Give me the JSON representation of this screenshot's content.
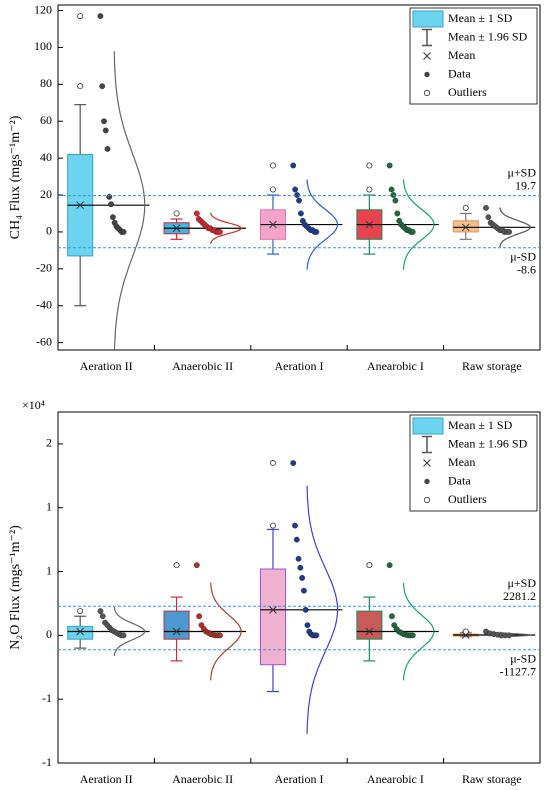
{
  "chart_data": [
    {
      "type": "box",
      "ylabel": "CH₄ Flux (mgs⁻¹m⁻²)",
      "categories": [
        "Aeration  II",
        "Anaerobic II",
        "Aeration I",
        "Anearobic I",
        "Raw storage"
      ],
      "ylim": [
        -64,
        123
      ],
      "yticks": [
        -60,
        -40,
        -20,
        0,
        20,
        40,
        60,
        80,
        100,
        120
      ],
      "legend": [
        "Mean ± 1 SD",
        "Mean ± 1.96 SD",
        "Mean",
        "Data",
        "Outliers"
      ],
      "legend_corner": "upper right",
      "ref_lines": [
        {
          "label": "μ+SD",
          "value": 19.7
        },
        {
          "label": "μ-SD",
          "value": -8.6
        }
      ],
      "ref_color": "#3a8fd8",
      "boxes": [
        {
          "box_low": -13,
          "box_high": 42,
          "mean": 14.5,
          "whisker_low": -40,
          "whisker_high": 69,
          "outliers": [
            79,
            117
          ],
          "points": [
            117,
            79,
            60,
            55,
            45,
            19,
            15,
            8,
            5,
            3,
            2,
            1,
            0,
            0
          ],
          "color": "#6cd4ef",
          "edge": "#3aa0c0",
          "whisker_color": "#555555",
          "point_color": "#444444",
          "curve_color": "#666666"
        },
        {
          "box_low": -1,
          "box_high": 5,
          "mean": 2,
          "whisker_low": -4,
          "whisker_high": 7,
          "outliers": [
            10
          ],
          "points": [
            10,
            7,
            6,
            5,
            4,
            3,
            2,
            2,
            1,
            1,
            0,
            0,
            0
          ],
          "color": "#3fb6e0",
          "edge": "#d8262f",
          "whisker_color": "#d8262f",
          "point_color": "#d8262f",
          "curve_color": "#c43030"
        },
        {
          "box_low": -4,
          "box_high": 12,
          "mean": 4,
          "whisker_low": -12,
          "whisker_high": 20,
          "outliers": [
            23,
            36
          ],
          "points": [
            36,
            23,
            20,
            17,
            10,
            6,
            4,
            3,
            2,
            1,
            1,
            0,
            0
          ],
          "color": "#f2a5c8",
          "edge": "#e070b0",
          "whisker_color": "#2a62c9",
          "point_color": "#1a3d8f",
          "curve_color": "#2a62c9"
        },
        {
          "box_low": -4,
          "box_high": 12,
          "mean": 4,
          "whisker_low": -12,
          "whisker_high": 20,
          "outliers": [
            23,
            36
          ],
          "points": [
            36,
            23,
            20,
            17,
            10,
            6,
            4,
            3,
            2,
            1,
            1,
            0,
            0
          ],
          "color": "#e8434f",
          "edge": "#1a8c5a",
          "whisker_color": "#1a8c5a",
          "point_color": "#1e6b3c",
          "curve_color": "#1aa06a"
        },
        {
          "box_low": 0,
          "box_high": 6,
          "mean": 2.5,
          "whisker_low": -4,
          "whisker_high": 10,
          "outliers": [
            13
          ],
          "points": [
            13,
            8,
            5,
            4,
            3,
            2,
            1,
            1,
            0,
            0,
            0
          ],
          "color": "#f6c08e",
          "edge": "#e09050",
          "whisker_color": "#777777",
          "point_color": "#555555",
          "curve_color": "#555555"
        }
      ]
    },
    {
      "type": "box",
      "ylabel": "N₂O Flux (mgs⁻¹m⁻²)",
      "multiplier": "×10⁴",
      "categories": [
        "Aeration  II",
        "Anaerobic II",
        "Aeration I",
        "Anearobic I",
        "Raw storage"
      ],
      "ylim": [
        -10000,
        17500
      ],
      "yticks": [
        {
          "value": -10000,
          "label": "-1"
        },
        {
          "value": -5000,
          "label": "-1"
        },
        0,
        {
          "value": 5000,
          "label": "1"
        },
        {
          "value": 10000,
          "label": "1"
        },
        {
          "value": 15000,
          "label": "2"
        }
      ],
      "legend": [
        "Mean ± 1 SD",
        "Mean ± 1.96 SD",
        "Mean",
        "Data",
        "Outliers"
      ],
      "legend_corner": "upper right",
      "ref_lines": [
        {
          "label": "μ+SD",
          "value": 2281.2
        },
        {
          "label": "μ-SD",
          "value": -1127.7
        }
      ],
      "ref_color": "#3a8fd8",
      "boxes": [
        {
          "box_low": -300,
          "box_high": 700,
          "mean": 300,
          "whisker_low": -1000,
          "whisker_high": 1500,
          "outliers": [
            1900
          ],
          "points": [
            1900,
            1500,
            1000,
            800,
            600,
            400,
            300,
            200,
            100,
            0,
            0
          ],
          "color": "#6cd4ef",
          "edge": "#3aa0c0",
          "whisker_color": "#555555",
          "point_color": "#555555",
          "curve_color": "#666666"
        },
        {
          "box_low": -300,
          "box_high": 1900,
          "mean": 300,
          "whisker_low": -2000,
          "whisker_high": 3000,
          "outliers": [
            5500
          ],
          "points": [
            5500,
            1500,
            800,
            500,
            300,
            200,
            100,
            50,
            0,
            0,
            0
          ],
          "color": "#4a9ad0",
          "edge": "#c03040",
          "whisker_color": "#c03040",
          "point_color": "#b0302a",
          "curve_color": "#9a4a2a"
        },
        {
          "box_low": -2300,
          "box_high": 5200,
          "mean": 2000,
          "whisker_low": -4400,
          "whisker_high": 8300,
          "outliers": [
            8600,
            13500
          ],
          "points": [
            13500,
            8600,
            7500,
            6000,
            5300,
            4500,
            3500,
            2000,
            800,
            300,
            100,
            0,
            0,
            0
          ],
          "color": "#eeb1d0",
          "edge": "#a050e0",
          "whisker_color": "#3b45c8",
          "point_color": "#1f3c8c",
          "curve_color": "#3b45c8"
        },
        {
          "box_low": -300,
          "box_high": 1900,
          "mean": 300,
          "whisker_low": -2000,
          "whisker_high": 3000,
          "outliers": [
            5500
          ],
          "points": [
            5500,
            1500,
            800,
            500,
            300,
            200,
            100,
            50,
            0,
            0,
            0
          ],
          "color": "#c95a5a",
          "edge": "#1a8c5a",
          "whisker_color": "#1a8c5a",
          "point_color": "#1e6b3c",
          "curve_color": "#1aa06a"
        },
        {
          "box_low": -50,
          "box_high": 100,
          "mean": 30,
          "whisker_low": -100,
          "whisker_high": 200,
          "outliers": [
            300
          ],
          "points": [
            300,
            150,
            100,
            50,
            0,
            0,
            0
          ],
          "color": "#f6c08e",
          "edge": "#e09050",
          "whisker_color": "#777777",
          "point_color": "#555555",
          "curve_color": "#555555"
        }
      ]
    }
  ]
}
